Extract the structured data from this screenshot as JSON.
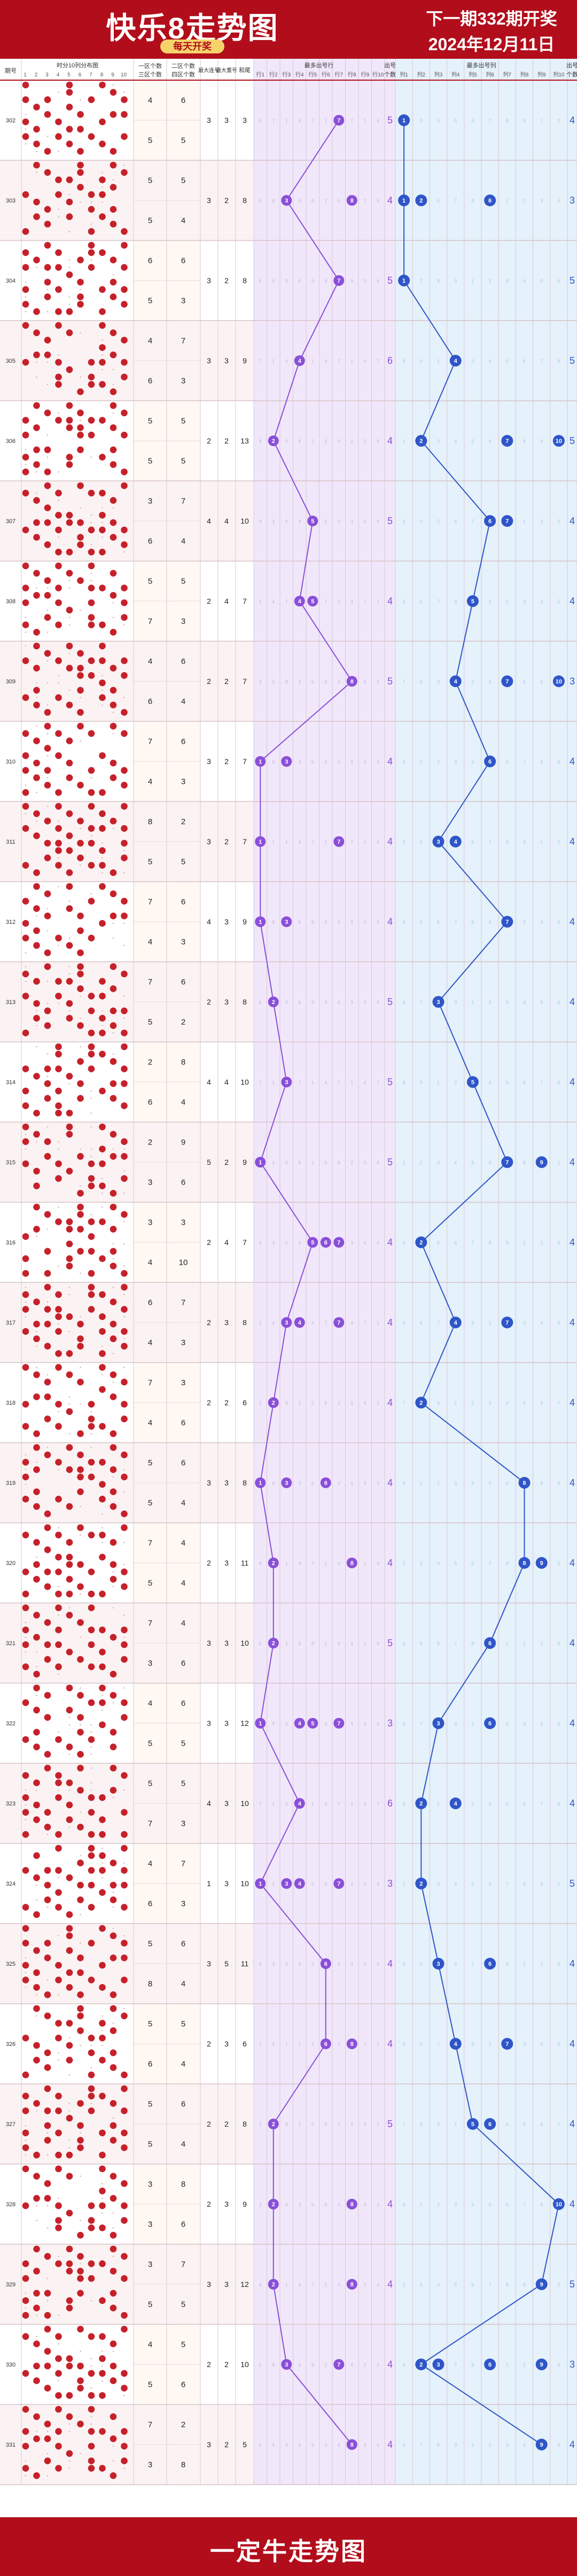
{
  "header": {
    "title": "快乐8走势图",
    "subtitle": "每天开奖",
    "next_issue": "下一期332期开奖",
    "date": "2024年12月11日"
  },
  "footer": {
    "text": "一定牛走势图"
  },
  "colors": {
    "brand_red": "#b20d1b",
    "ball_red": "#c6212b",
    "purple": "#8a4fd8",
    "blue": "#2f55c8",
    "purple_bg": "#f1e7fb",
    "blue_bg": "#e5f1fb"
  },
  "columns": {
    "issue": "期号",
    "tail_group": "时分10列分布图",
    "tail_digits": [
      "1",
      "2",
      "3",
      "4",
      "5",
      "6",
      "7",
      "8",
      "9",
      "10"
    ],
    "zone_count_1": [
      "一区个数",
      "三区个数"
    ],
    "zone_count_2": [
      "二区个数",
      "四区个数"
    ],
    "max_cont": "最大连号",
    "max_repeat": "最大重号",
    "sum_tail": "和尾",
    "most_line_header": "最多出号行",
    "line_labels": [
      "行1",
      "行2",
      "行3",
      "行4",
      "行5",
      "行6",
      "行7",
      "行8",
      "行9",
      "行10"
    ],
    "count_header": "出号个数",
    "most_col_header": "最多出号列",
    "col_labels": [
      "列1",
      "列2",
      "列3",
      "列4",
      "列5",
      "列6",
      "列7",
      "列8",
      "列9",
      "列10"
    ]
  },
  "chart_data": {
    "type": "line",
    "issues": [
      "302",
      "303",
      "304",
      "305",
      "306",
      "307",
      "308",
      "309",
      "310",
      "311",
      "312",
      "313",
      "314",
      "315",
      "316",
      "317",
      "318",
      "319",
      "320",
      "321",
      "322",
      "323",
      "324",
      "325",
      "326",
      "327",
      "328",
      "329",
      "330",
      "331"
    ],
    "zone_counts": [
      [
        4,
        6,
        5,
        5
      ],
      [
        5,
        5,
        5,
        4
      ],
      [
        6,
        6,
        5,
        3
      ],
      [
        4,
        7,
        6,
        3
      ],
      [
        5,
        5,
        5,
        5
      ],
      [
        3,
        7,
        6,
        4
      ],
      [
        5,
        5,
        7,
        3
      ],
      [
        4,
        6,
        6,
        4
      ],
      [
        7,
        6,
        4,
        3
      ],
      [
        8,
        2,
        5,
        5
      ],
      [
        7,
        6,
        4,
        3
      ],
      [
        7,
        6,
        5,
        2
      ],
      [
        2,
        8,
        6,
        4
      ],
      [
        2,
        9,
        3,
        6
      ],
      [
        3,
        3,
        4,
        10
      ],
      [
        6,
        7,
        4,
        3
      ],
      [
        7,
        3,
        4,
        6
      ],
      [
        5,
        6,
        5,
        4
      ],
      [
        7,
        4,
        5,
        4
      ],
      [
        7,
        4,
        3,
        6
      ],
      [
        4,
        6,
        5,
        5
      ],
      [
        5,
        5,
        7,
        3
      ],
      [
        4,
        7,
        6,
        3
      ],
      [
        5,
        6,
        8,
        4
      ],
      [
        5,
        5,
        6,
        4
      ],
      [
        5,
        6,
        5,
        4
      ],
      [
        3,
        8,
        3,
        6
      ],
      [
        3,
        7,
        5,
        5
      ],
      [
        4,
        5,
        5,
        6
      ],
      [
        7,
        2,
        3,
        8
      ]
    ],
    "max_consecutive": [
      3,
      3,
      3,
      3,
      2,
      4,
      2,
      2,
      3,
      3,
      4,
      2,
      4,
      5,
      2,
      2,
      2,
      3,
      2,
      3,
      3,
      4,
      1,
      3,
      2,
      2,
      2,
      3,
      2,
      3
    ],
    "max_repeat": [
      3,
      2,
      2,
      3,
      2,
      4,
      4,
      2,
      2,
      2,
      3,
      3,
      4,
      2,
      4,
      3,
      2,
      3,
      3,
      3,
      3,
      3,
      3,
      5,
      3,
      2,
      3,
      3,
      2,
      2
    ],
    "sum_tail": [
      3,
      8,
      8,
      9,
      13,
      10,
      7,
      7,
      7,
      7,
      9,
      8,
      10,
      9,
      7,
      8,
      6,
      8,
      11,
      10,
      12,
      10,
      10,
      11,
      6,
      8,
      9,
      12,
      10,
      5
    ],
    "line_series": {
      "name": "最多出号行",
      "trend": [
        7,
        3,
        7,
        4,
        2,
        5,
        4,
        8,
        1,
        1,
        1,
        2,
        3,
        1,
        5,
        3,
        2,
        1,
        2,
        2,
        1,
        4,
        1,
        6,
        6,
        2,
        2,
        2,
        3,
        8
      ],
      "balls": [
        [
          7
        ],
        [
          3,
          8
        ],
        [
          7
        ],
        [
          4
        ],
        [
          2
        ],
        [
          5
        ],
        [
          4,
          5
        ],
        [
          8
        ],
        [
          1,
          3
        ],
        [
          1,
          7
        ],
        [
          1,
          3
        ],
        [
          2
        ],
        [
          3
        ],
        [
          1
        ],
        [
          5,
          6,
          7
        ],
        [
          3,
          4,
          7
        ],
        [
          2
        ],
        [
          1,
          3,
          6
        ],
        [
          2,
          8
        ],
        [
          2
        ],
        [
          1,
          4,
          5,
          7
        ],
        [
          4
        ],
        [
          1,
          3,
          4,
          7
        ],
        [
          6
        ],
        [
          6,
          8
        ],
        [
          2
        ],
        [
          2,
          8
        ],
        [
          2,
          8
        ],
        [
          3,
          7
        ],
        [
          8
        ]
      ],
      "counts": [
        5,
        4,
        5,
        6,
        4,
        5,
        4,
        5,
        4,
        4,
        4,
        5,
        5,
        5,
        4,
        4,
        4,
        4,
        4,
        5,
        3,
        6,
        3,
        4,
        4,
        5,
        4,
        4,
        4,
        4
      ]
    },
    "col_series": {
      "name": "最多出号列",
      "trend": [
        1,
        1,
        1,
        4,
        2,
        6,
        5,
        4,
        6,
        3,
        7,
        3,
        5,
        7,
        2,
        4,
        2,
        8,
        8,
        6,
        3,
        2,
        2,
        3,
        4,
        5,
        10,
        9,
        2,
        9
      ],
      "balls": [
        [
          1
        ],
        [
          1,
          2,
          6
        ],
        [
          1
        ],
        [
          4
        ],
        [
          2,
          7,
          10
        ],
        [
          6,
          7
        ],
        [
          5
        ],
        [
          4,
          7,
          10
        ],
        [
          6
        ],
        [
          3,
          4
        ],
        [
          7
        ],
        [
          3
        ],
        [
          5
        ],
        [
          7,
          9
        ],
        [
          2
        ],
        [
          4,
          7
        ],
        [
          2
        ],
        [
          8
        ],
        [
          8,
          9
        ],
        [
          6
        ],
        [
          3,
          6
        ],
        [
          2,
          4
        ],
        [
          2
        ],
        [
          3,
          6
        ],
        [
          4,
          7
        ],
        [
          5,
          6
        ],
        [
          10
        ],
        [
          9
        ],
        [
          2,
          3,
          6,
          9
        ],
        [
          9
        ]
      ],
      "counts": [
        4,
        3,
        5,
        5,
        5,
        4,
        4,
        3,
        4,
        4,
        4,
        4,
        4,
        4,
        4,
        4,
        4,
        4,
        4,
        4,
        4,
        4,
        5,
        4,
        4,
        4,
        4,
        5,
        3,
        4
      ]
    }
  }
}
